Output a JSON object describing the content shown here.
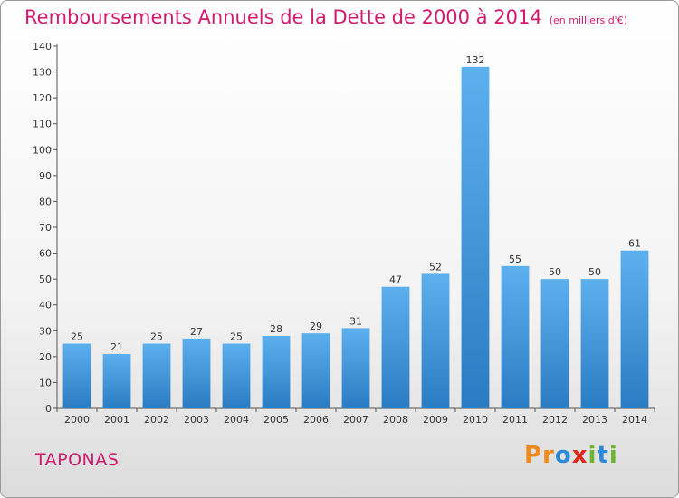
{
  "chart_data": {
    "type": "bar",
    "title": "Remboursements Annuels de la Dette de 2000 à 2014",
    "subtitle": "(en milliers d'€)",
    "categories": [
      "2000",
      "2001",
      "2002",
      "2003",
      "2004",
      "2005",
      "2006",
      "2007",
      "2008",
      "2009",
      "2010",
      "2011",
      "2012",
      "2013",
      "2014"
    ],
    "values": [
      25,
      21,
      25,
      27,
      25,
      28,
      29,
      31,
      47,
      52,
      132,
      55,
      50,
      50,
      61
    ],
    "ylim": [
      0,
      140
    ],
    "yticks": [
      0,
      10,
      20,
      30,
      40,
      50,
      60,
      70,
      80,
      90,
      100,
      110,
      120,
      130,
      140
    ],
    "xlabel": "",
    "ylabel": "",
    "grid": false,
    "bar_color": "#4a9fe0"
  },
  "footer": {
    "commune": "TAPONAS",
    "logo_letters": [
      {
        "ch": "P",
        "color": "#f08a1c"
      },
      {
        "ch": "r",
        "color": "#f08a1c"
      },
      {
        "ch": "o",
        "color": "#2e8ad6"
      },
      {
        "ch": "x",
        "color": "#e0291c"
      },
      {
        "ch": "i",
        "color": "#6db52e"
      },
      {
        "ch": "t",
        "color": "#2e8ad6"
      },
      {
        "ch": "i",
        "color": "#6db52e"
      }
    ]
  }
}
